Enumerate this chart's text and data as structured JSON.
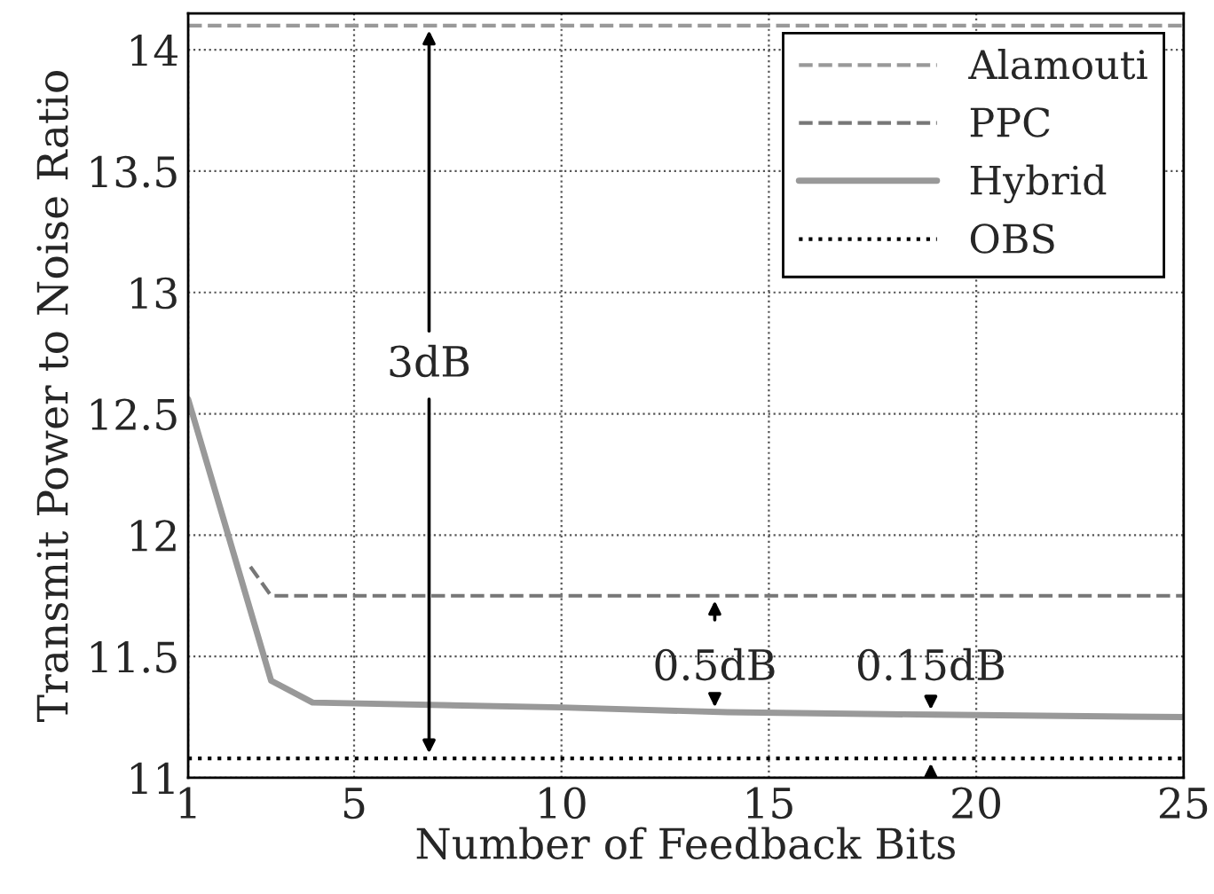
{
  "chart_data": {
    "type": "line",
    "xlabel": "Number of Feedback Bits",
    "ylabel": "Transmit Power to Noise Ratio",
    "xlim": [
      1,
      25
    ],
    "ylim": [
      11,
      14.15
    ],
    "xticks": [
      1,
      5,
      10,
      15,
      20,
      25
    ],
    "yticks": [
      11,
      11.5,
      12,
      12.5,
      13,
      13.5,
      14
    ],
    "grid": true,
    "legend": "top right",
    "series": [
      {
        "name": "Alamouti",
        "color": "#999999",
        "line_style": "dashed",
        "x": [
          1,
          25
        ],
        "values": [
          14.1,
          14.1
        ]
      },
      {
        "name": "PPC",
        "color": "#777777",
        "line_style": "dashed",
        "x": [
          2.5,
          3,
          25
        ],
        "values": [
          11.87,
          11.75,
          11.75
        ]
      },
      {
        "name": "Hybrid",
        "color": "#999999",
        "line_style": "solid",
        "x": [
          1,
          3,
          4,
          10,
          14,
          19,
          25
        ],
        "values": [
          12.56,
          11.4,
          11.31,
          11.29,
          11.27,
          11.26,
          11.25
        ]
      },
      {
        "name": "OBS",
        "color": "#000000",
        "line_style": "dotted",
        "x": [
          1,
          25
        ],
        "values": [
          11.08,
          11.08
        ]
      }
    ],
    "annotations": [
      "3dB",
      "0.5dB",
      "0.15dB"
    ]
  }
}
